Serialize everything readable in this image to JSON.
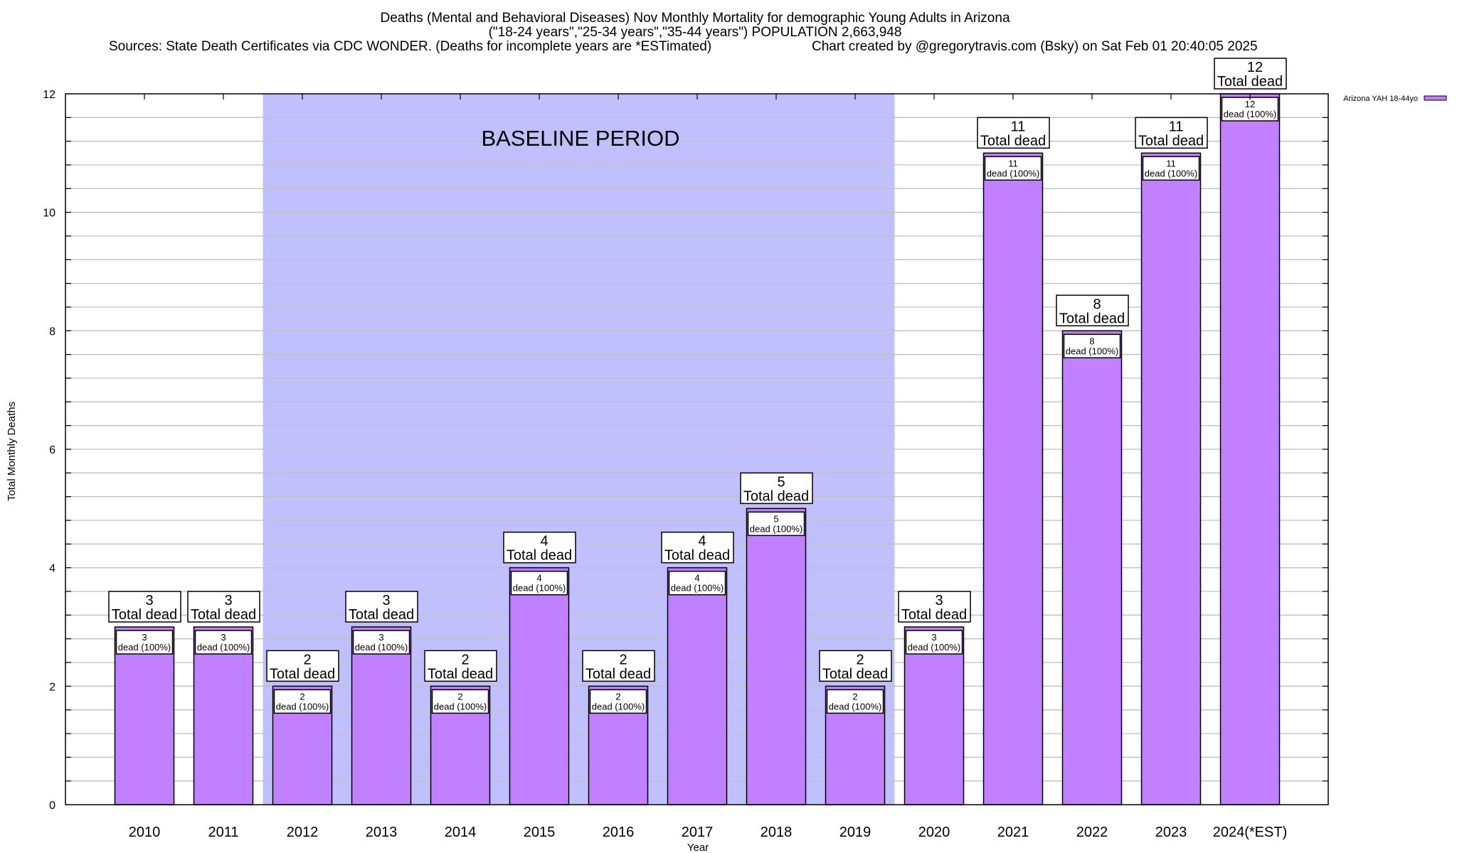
{
  "chart_data": {
    "type": "bar",
    "title": "Deaths (Mental and Behavioral Diseases) Nov Monthly Mortality for demographic Young Adults in Arizona",
    "subtitle": "(\"18-24 years\",\"25-34 years\",\"35-44 years\") POPULATION 2,663,948",
    "sources": "Sources: State Death Certificates via CDC WONDER. (Deaths for incomplete years are *ESTimated)",
    "credit": "Chart created by @gregorytravis.com (Bsky) on Sat Feb 01 20:40:05 2025",
    "xlabel": "Year",
    "ylabel": "Total Monthly Deaths",
    "ylim": [
      0,
      12
    ],
    "yticks": [
      0,
      2,
      4,
      6,
      8,
      10,
      12
    ],
    "minor_grid_step": 0.4,
    "grid": true,
    "legend": {
      "label": "Arizona YAH 18-44yo",
      "position": "top-right outside"
    },
    "categories": [
      "2010",
      "2011",
      "2012",
      "2013",
      "2014",
      "2015",
      "2016",
      "2017",
      "2018",
      "2019",
      "2020",
      "2021",
      "2022",
      "2023",
      "2024(*EST)"
    ],
    "series": [
      {
        "name": "Arizona YAH 18-44yo",
        "values": [
          3,
          3,
          2,
          3,
          2,
          4,
          2,
          4,
          5,
          2,
          3,
          11,
          8,
          11,
          12
        ],
        "color": "#c080ff"
      }
    ],
    "total_label_suffix": "Total dead",
    "inner_label_suffix": "dead (100%)",
    "baseline": {
      "label": "BASELINE PERIOD",
      "from": "2012",
      "to": "2019",
      "color": "#c0c0ff"
    }
  }
}
